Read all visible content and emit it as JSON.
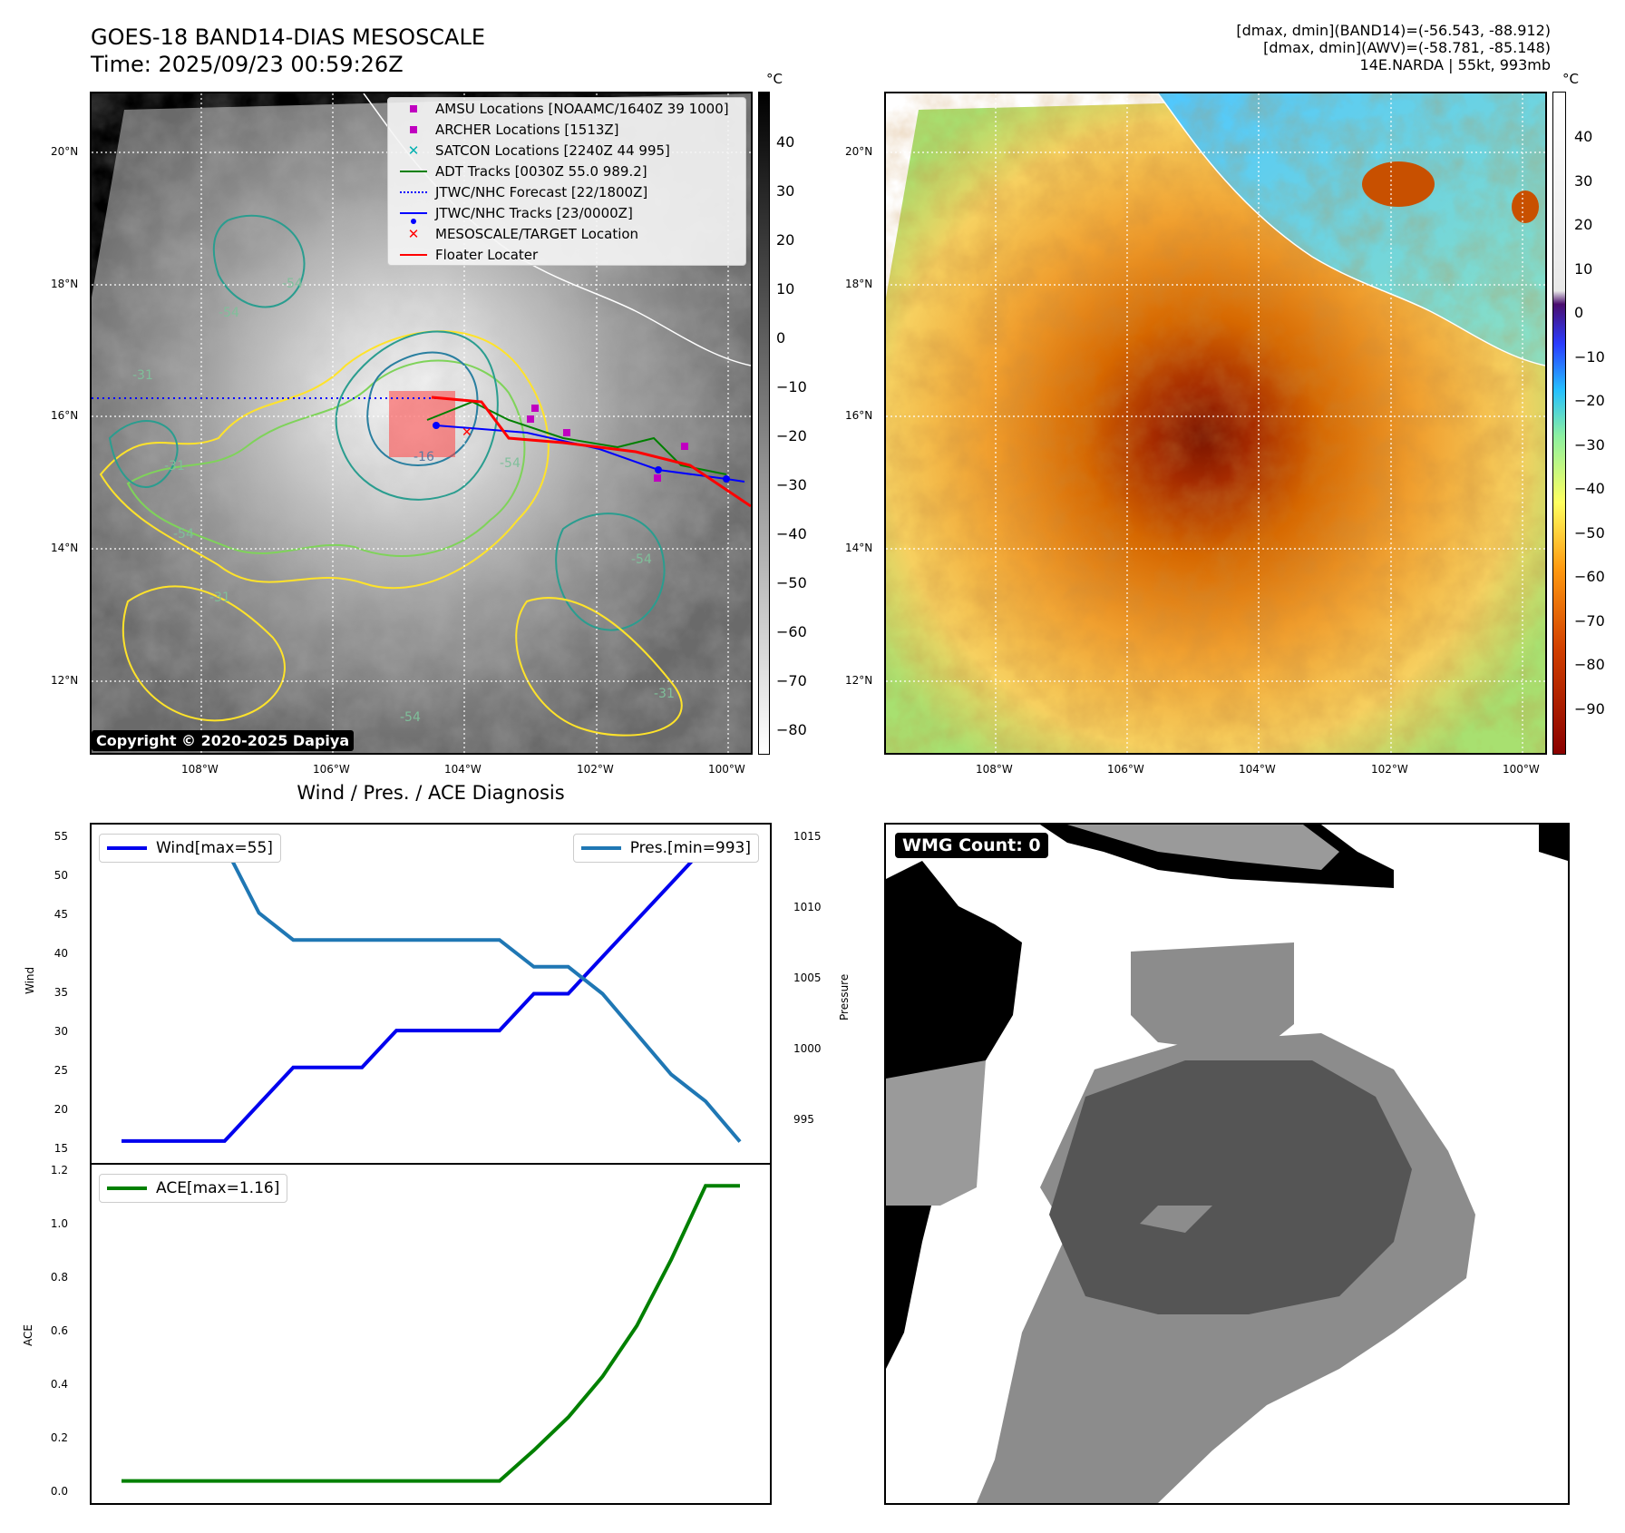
{
  "header": {
    "title_line1": "GOES-18 BAND14-DIAS MESOSCALE",
    "title_line2": "Time: 2025/09/23 00:59:26Z",
    "stats_line1": "[dmax, dmin](BAND14)=(-56.543, -88.912)",
    "stats_line2": "[dmax, dmin](AWV)=(-58.781, -85.148)",
    "stats_line3": "14E.NARDA | 55kt, 993mb"
  },
  "map": {
    "lat_labels": [
      "20°N",
      "18°N",
      "16°N",
      "14°N",
      "12°N"
    ],
    "lon_labels": [
      "108°W",
      "106°W",
      "104°W",
      "102°W",
      "100°W"
    ],
    "copyright": "Copyright © 2020-2025 Dapiya",
    "legend": [
      {
        "label": "AMSU Locations [NOAAMC/1640Z 39 1000]",
        "color": "#c000c0",
        "symbol": "square"
      },
      {
        "label": "ARCHER Locations [1513Z]",
        "color": "#c000c0",
        "symbol": "square"
      },
      {
        "label": "SATCON Locations [2240Z 44 995]",
        "color": "#00b0b0",
        "symbol": "x"
      },
      {
        "label": "ADT Tracks [0030Z 55.0 989.2]",
        "color": "#008000",
        "symbol": "line"
      },
      {
        "label": "JTWC/NHC Forecast [22/1800Z]",
        "color": "#0000ff",
        "symbol": "dotted"
      },
      {
        "label": "JTWC/NHC Tracks [23/0000Z]",
        "color": "#0000ff",
        "symbol": "line-dot"
      },
      {
        "label": "MESOSCALE/TARGET Location",
        "color": "#ff0000",
        "symbol": "x"
      },
      {
        "label": "Floater Locater",
        "color": "#ff0000",
        "symbol": "line"
      }
    ],
    "contour_labels": [
      "-54",
      "-31",
      "-54",
      "-31",
      "-54",
      "-16",
      "-54",
      "-31",
      "-54",
      "-31",
      "-54"
    ]
  },
  "colorbar_left": {
    "unit": "°C",
    "ticks": [
      "40",
      "30",
      "20",
      "10",
      "0",
      "−10",
      "−20",
      "−30",
      "−40",
      "−50",
      "−60",
      "−70",
      "−80"
    ]
  },
  "colorbar_right": {
    "unit": "°C",
    "ticks": [
      "40",
      "30",
      "20",
      "10",
      "0",
      "−10",
      "−20",
      "−30",
      "−40",
      "−50",
      "−60",
      "−70",
      "−80",
      "−90"
    ]
  },
  "diagnosis": {
    "title": "Wind / Pres. / ACE Diagnosis",
    "wind_axis_label": "Wind",
    "pressure_axis_label": "Pressure",
    "ace_axis_label": "ACE",
    "wind_legend": "Wind[max=55]",
    "pres_legend": "Pres.[min=993]",
    "ace_legend": "ACE[max=1.16]",
    "wind_ticks": [
      "55",
      "50",
      "45",
      "40",
      "35",
      "30",
      "25",
      "20",
      "15"
    ],
    "pres_ticks": [
      "1015",
      "1010",
      "1005",
      "1000",
      "995"
    ],
    "ace_ticks": [
      "1.2",
      "1.0",
      "0.8",
      "0.6",
      "0.4",
      "0.2",
      "0.0"
    ],
    "wind_color": "#0000ee",
    "pres_color": "#1f77b4",
    "ace_color": "#008000"
  },
  "chart_data": [
    {
      "type": "line",
      "title": "Wind / Pres. / ACE Diagnosis",
      "xlabel": "",
      "ylabel": "Wind",
      "x": [
        0,
        1,
        2,
        3,
        4,
        5,
        6,
        7,
        8,
        9,
        10,
        11,
        12,
        13,
        14,
        15,
        16,
        17,
        18
      ],
      "ylim": [
        14,
        56
      ],
      "series": [
        {
          "name": "Wind[max=55]",
          "values": [
            15,
            15,
            15,
            15,
            20,
            25,
            25,
            25,
            30,
            30,
            30,
            30,
            35,
            35,
            40,
            45,
            50,
            55,
            55
          ]
        }
      ]
    },
    {
      "type": "line",
      "ylabel": "Pressure",
      "x": [
        0,
        1,
        2,
        3,
        4,
        5,
        6,
        7,
        8,
        9,
        10,
        11,
        12,
        13,
        14,
        15,
        16,
        17,
        18
      ],
      "ylim": [
        992.5,
        1015.5
      ],
      "series": [
        {
          "name": "Pres.[min=993]",
          "values": [
            1015,
            1015,
            1015,
            1015,
            1010,
            1008,
            1008,
            1008,
            1008,
            1008,
            1008,
            1008,
            1006,
            1006,
            1004,
            1001,
            998,
            996,
            993
          ]
        }
      ]
    },
    {
      "type": "line",
      "ylabel": "ACE",
      "x": [
        0,
        1,
        2,
        3,
        4,
        5,
        6,
        7,
        8,
        9,
        10,
        11,
        12,
        13,
        14,
        15,
        16,
        17,
        18
      ],
      "ylim": [
        -0.03,
        1.2
      ],
      "series": [
        {
          "name": "ACE[max=1.16]",
          "values": [
            0,
            0,
            0,
            0,
            0,
            0,
            0,
            0,
            0,
            0,
            0,
            0,
            0.12,
            0.25,
            0.41,
            0.61,
            0.87,
            1.16,
            1.16
          ]
        }
      ]
    }
  ],
  "wmg": {
    "count_label": "WMG Count: 0"
  }
}
